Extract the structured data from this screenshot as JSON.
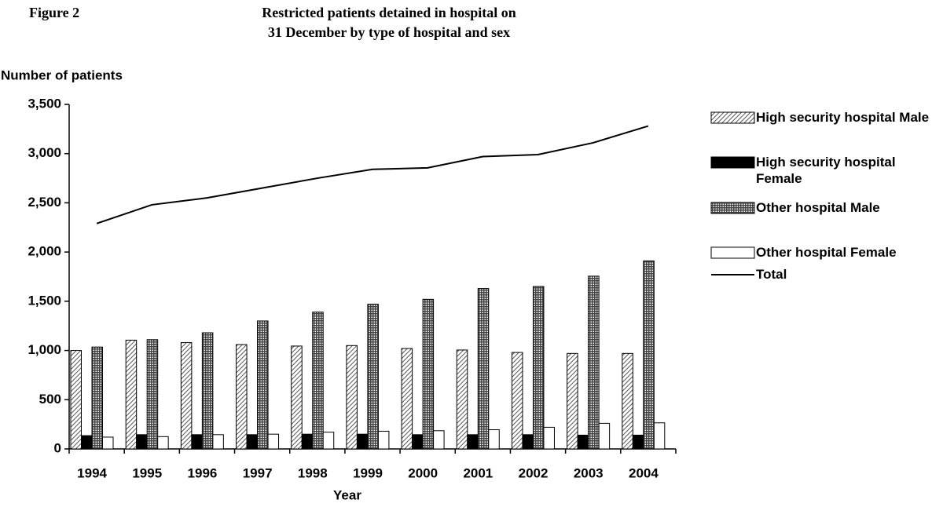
{
  "chart_data": {
    "type": "bar",
    "figure_label": "Figure 2",
    "title": [
      "Restricted patients detained in hospital on",
      "31 December by type of hospital and sex"
    ],
    "ylabel": "Number of patients",
    "xlabel": "Year",
    "categories": [
      "1994",
      "1995",
      "1996",
      "1997",
      "1998",
      "1999",
      "2000",
      "2001",
      "2002",
      "2003",
      "2004"
    ],
    "series": [
      {
        "name": "High security hospital Male",
        "type": "bar",
        "color": "#c0c0c0",
        "pattern": "hatch",
        "values": [
          1000,
          1105,
          1080,
          1060,
          1045,
          1050,
          1020,
          1005,
          980,
          970,
          970
        ]
      },
      {
        "name": "High security hospital Female",
        "type": "bar",
        "color": "#000000",
        "pattern": "solid",
        "values": [
          135,
          145,
          145,
          145,
          150,
          150,
          145,
          145,
          145,
          140,
          140
        ]
      },
      {
        "name": "Other hospital Male",
        "type": "bar",
        "color": "#808080",
        "pattern": "grid",
        "values": [
          1035,
          1110,
          1180,
          1300,
          1390,
          1470,
          1520,
          1630,
          1650,
          1755,
          1910
        ]
      },
      {
        "name": "Other hospital Female",
        "type": "bar",
        "color": "#ffffff",
        "pattern": "solid",
        "values": [
          120,
          125,
          145,
          150,
          170,
          180,
          185,
          195,
          220,
          260,
          265
        ]
      },
      {
        "name": "Total",
        "type": "line",
        "color": "#000000",
        "values": [
          2290,
          2480,
          2550,
          2650,
          2750,
          2840,
          2855,
          2970,
          2990,
          3110,
          3280
        ]
      }
    ],
    "ylim": [
      0,
      3500
    ],
    "yticks": [
      0,
      500,
      {
        "value": 1000,
        "label": "1,000"
      },
      {
        "value": 1500,
        "label": "1,500"
      },
      {
        "value": 2000,
        "label": "2,000"
      },
      {
        "value": 2500,
        "label": "2,500"
      },
      {
        "value": 3000,
        "label": "3,000"
      },
      {
        "value": 3500,
        "label": "3,500"
      }
    ],
    "grid": false,
    "legend": "right"
  }
}
